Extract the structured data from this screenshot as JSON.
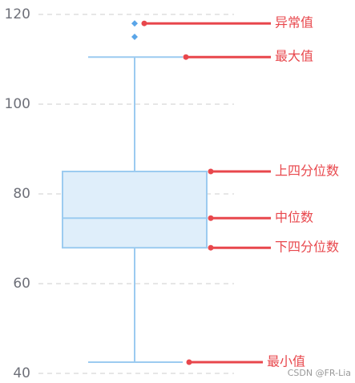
{
  "chart_data": {
    "type": "box",
    "min": 42.5,
    "q1": 68,
    "median": 74.6,
    "q3": 85,
    "max": 110.5,
    "outliers": [
      118,
      115
    ],
    "ylim": [
      40,
      120
    ],
    "yticks": [
      40,
      60,
      80,
      100,
      120
    ],
    "grid": true,
    "box_color": "#9ccbf0",
    "box_fill": "#dfeefa",
    "outlier_color": "#5aa5e8",
    "annotation_color": "#e8474c",
    "annotations": [
      "异常值",
      "最大值",
      "上四分位数",
      "中位数",
      "下四分位数",
      "最小值"
    ],
    "watermark": "CSDN @FR-Lia"
  }
}
